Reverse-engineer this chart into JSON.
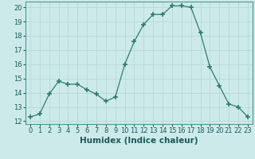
{
  "x": [
    0,
    1,
    2,
    3,
    4,
    5,
    6,
    7,
    8,
    9,
    10,
    11,
    12,
    13,
    14,
    15,
    16,
    17,
    18,
    19,
    20,
    21,
    22,
    23
  ],
  "y": [
    12.3,
    12.5,
    13.9,
    14.8,
    14.6,
    14.6,
    14.2,
    13.9,
    13.4,
    13.7,
    16.0,
    17.6,
    18.8,
    19.5,
    19.5,
    20.1,
    20.1,
    20.0,
    18.2,
    15.8,
    14.5,
    13.2,
    13.0,
    12.3
  ],
  "line_color": "#2e7d6e",
  "marker": "+",
  "marker_size": 4,
  "bg_color": "#cdeaea",
  "grid_color": "#b8d8d8",
  "xlabel": "Humidex (Indice chaleur)",
  "ylim": [
    11.8,
    20.4
  ],
  "xlim": [
    -0.5,
    23.5
  ],
  "yticks": [
    12,
    13,
    14,
    15,
    16,
    17,
    18,
    19,
    20
  ],
  "xticks": [
    0,
    1,
    2,
    3,
    4,
    5,
    6,
    7,
    8,
    9,
    10,
    11,
    12,
    13,
    14,
    15,
    16,
    17,
    18,
    19,
    20,
    21,
    22,
    23
  ],
  "tick_fontsize": 6.0,
  "xlabel_fontsize": 7.5,
  "xlabel_fontweight": "bold",
  "spine_color": "#4a9a8a"
}
